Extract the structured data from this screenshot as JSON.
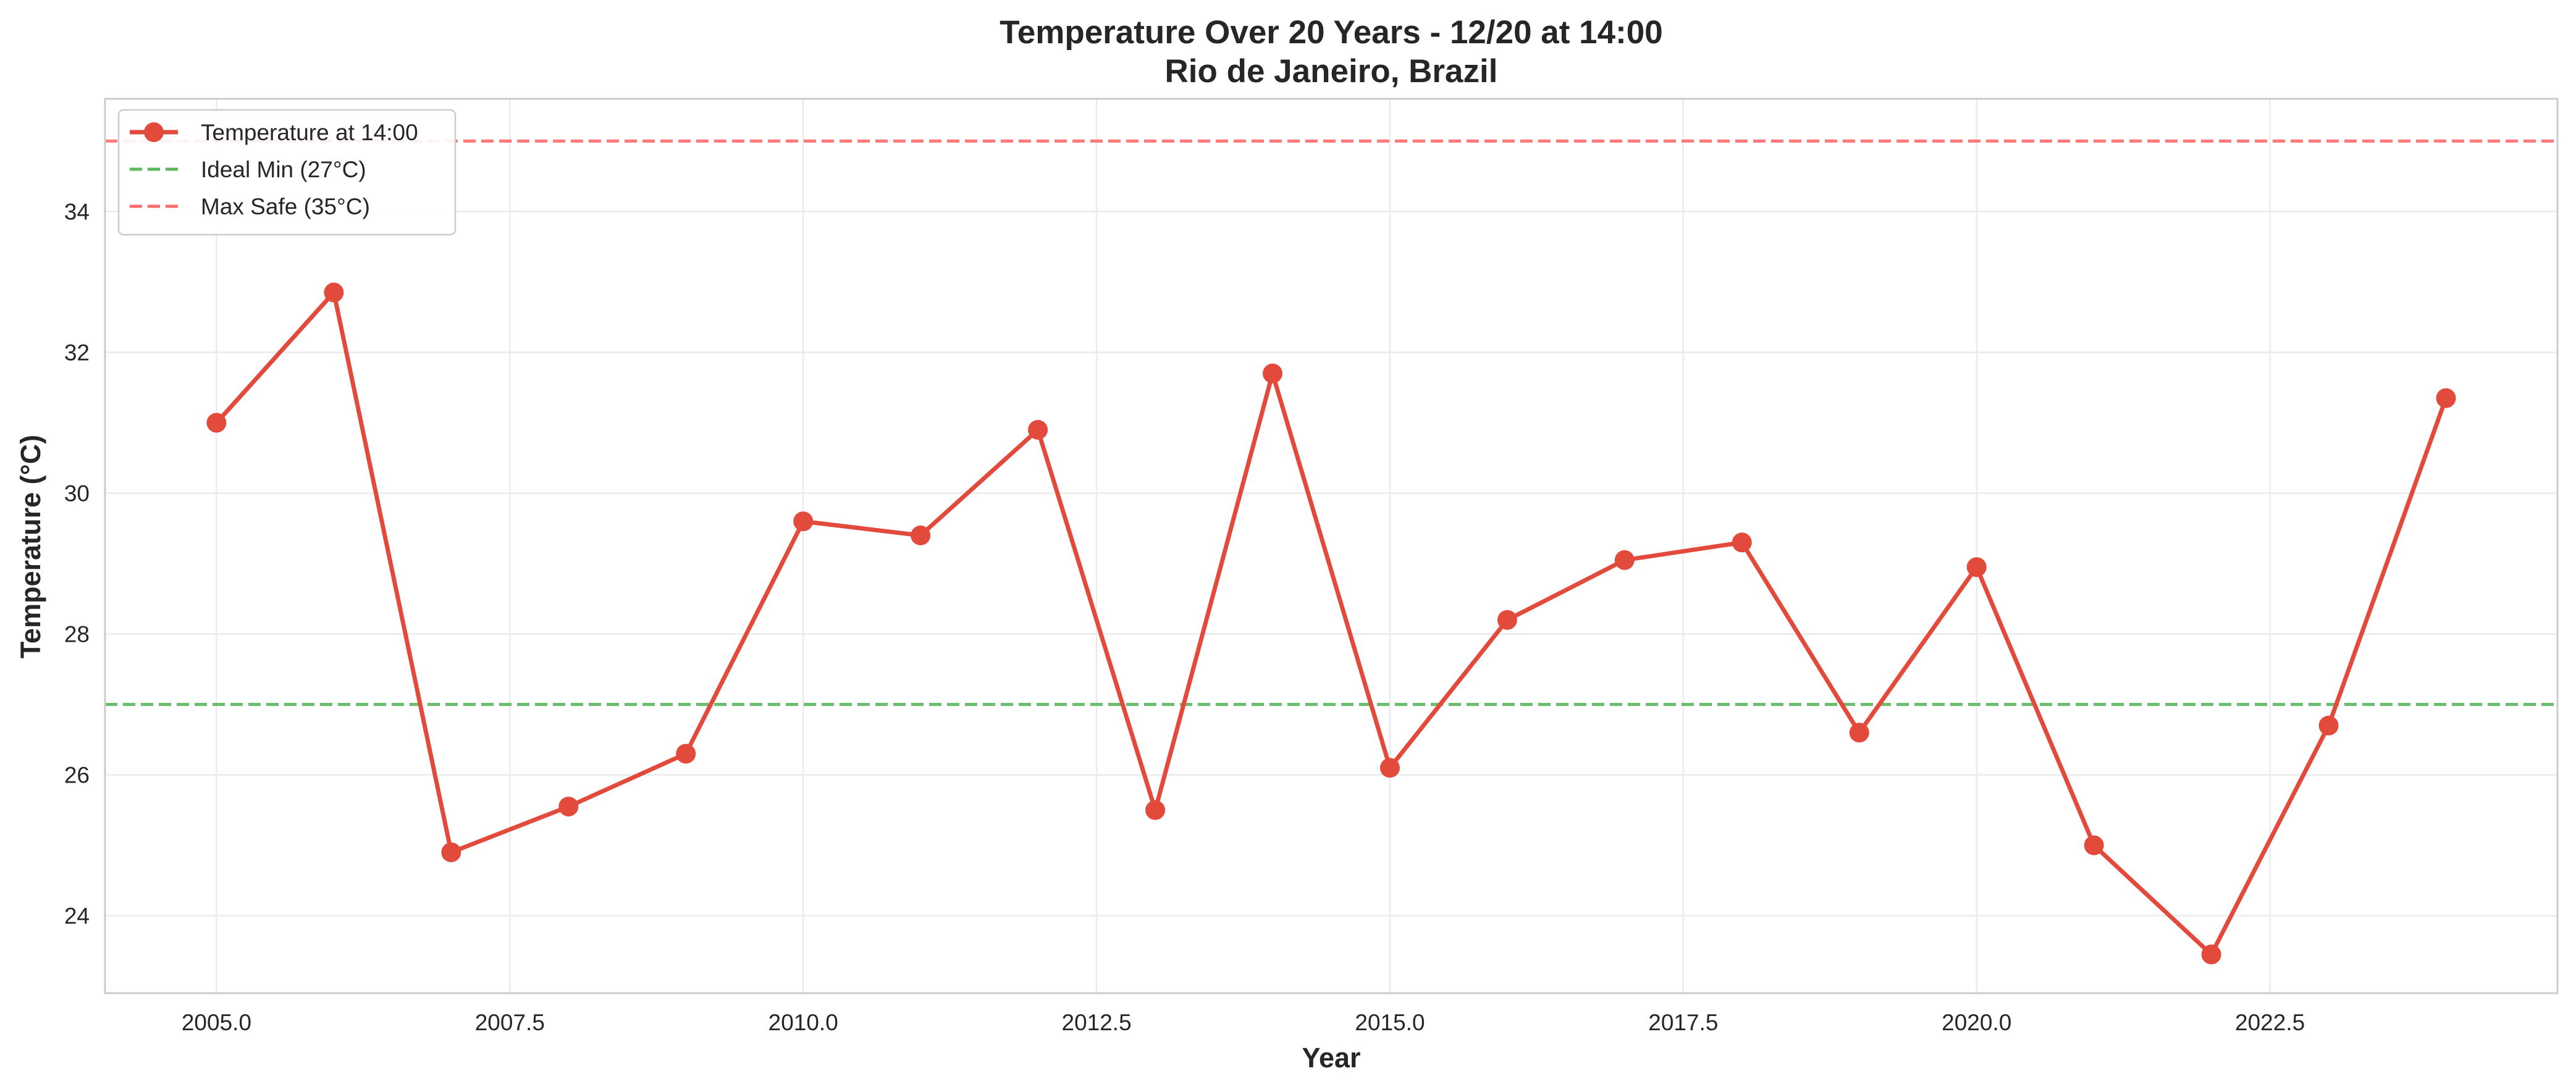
{
  "chart_data": {
    "type": "line",
    "title": "Temperature Over 20 Years - 12/20 at 14:00",
    "subtitle": "Rio de Janeiro, Brazil",
    "xlabel": "Year",
    "ylabel": "Temperature (°C)",
    "xlim": [
      2004.05,
      2024.95
    ],
    "ylim": [
      22.9,
      35.6
    ],
    "x_ticks": [
      2005.0,
      2007.5,
      2010.0,
      2012.5,
      2015.0,
      2017.5,
      2020.0,
      2022.5
    ],
    "x_tick_labels": [
      "2005.0",
      "2007.5",
      "2010.0",
      "2012.5",
      "2015.0",
      "2017.5",
      "2020.0",
      "2022.5"
    ],
    "y_ticks": [
      24,
      26,
      28,
      30,
      32,
      34
    ],
    "y_tick_labels": [
      "24",
      "26",
      "28",
      "30",
      "32",
      "34"
    ],
    "grid": true,
    "legend_position": "top-left",
    "series": [
      {
        "name": "Temperature at 14:00",
        "color": "#e24a3b",
        "x": [
          2005,
          2006,
          2007,
          2008,
          2009,
          2010,
          2011,
          2012,
          2013,
          2014,
          2015,
          2016,
          2017,
          2018,
          2019,
          2020,
          2021,
          2022,
          2023,
          2024
        ],
        "values": [
          31.0,
          32.85,
          24.9,
          25.55,
          26.3,
          29.6,
          29.4,
          30.9,
          25.5,
          31.7,
          26.1,
          28.2,
          29.05,
          29.3,
          26.6,
          28.95,
          25.0,
          23.45,
          26.7,
          31.35
        ]
      }
    ],
    "reference_lines": [
      {
        "name": "Ideal Min (27°C)",
        "value": 27,
        "color": "#5cb85c"
      },
      {
        "name": "Max Safe (35°C)",
        "value": 35,
        "color": "#ff6b6b"
      }
    ]
  }
}
